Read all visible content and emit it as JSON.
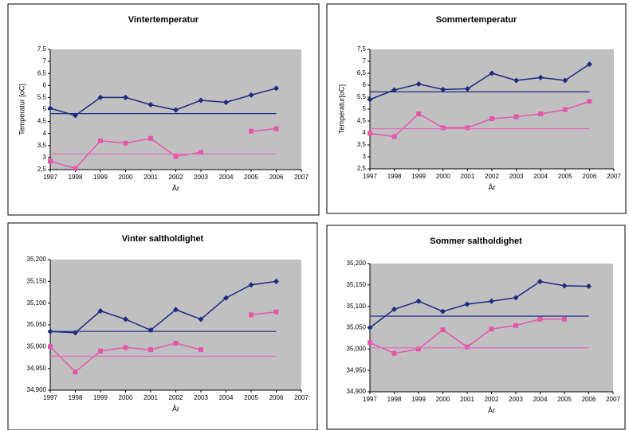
{
  "chart_data": [
    {
      "type": "line",
      "title": "Vintertemperatur",
      "x_label": "År",
      "y_label": "Temperatur [oC]",
      "x": [
        1997,
        1998,
        1999,
        2000,
        2001,
        2002,
        2003,
        2004,
        2005,
        2006
      ],
      "xlim": [
        1997,
        2007
      ],
      "xticks": [
        1997,
        1998,
        1999,
        2000,
        2001,
        2002,
        2003,
        2004,
        2005,
        2006,
        2007
      ],
      "ylim": [
        2.5,
        7.5
      ],
      "yticks": [
        {
          "value": 2.5,
          "label": "2,5"
        },
        3,
        {
          "value": 3.5,
          "label": "3,5"
        },
        4,
        {
          "value": 4.5,
          "label": "4,5"
        },
        5,
        {
          "value": 5.5,
          "label": "5,5"
        },
        6,
        {
          "value": 6.5,
          "label": "6,5"
        },
        7,
        {
          "value": 7.5,
          "label": "7,5"
        }
      ],
      "series": [
        {
          "color": "#1c2a80",
          "marker": "diamond",
          "values": [
            5.05,
            4.75,
            5.5,
            5.5,
            5.2,
            4.98,
            5.38,
            5.3,
            5.6,
            5.88
          ]
        },
        {
          "color": "#e456ab",
          "marker": "square",
          "values": [
            2.85,
            2.55,
            3.7,
            3.6,
            3.8,
            3.05,
            3.22,
            null,
            4.1,
            4.2
          ]
        },
        {
          "color": "#1f2d86",
          "marker": "none",
          "values": [
            4.83,
            4.83,
            4.83,
            4.83,
            4.83,
            4.83,
            4.83,
            4.83,
            4.83,
            4.83
          ]
        },
        {
          "color": "#e070c0",
          "marker": "none",
          "values": [
            3.15,
            3.15,
            3.15,
            3.15,
            3.15,
            3.15,
            3.15,
            3.15,
            3.15,
            3.15
          ]
        }
      ]
    },
    {
      "type": "line",
      "title": "Sommertemperatur",
      "x_label": "År",
      "y_label": "Temperatur[oC]",
      "x": [
        1997,
        1998,
        1999,
        2000,
        2001,
        2002,
        2003,
        2004,
        2005,
        2006
      ],
      "xlim": [
        1997,
        2007
      ],
      "xticks": [
        1997,
        1998,
        1999,
        2000,
        2001,
        2002,
        2003,
        2004,
        2005,
        2006,
        2007
      ],
      "ylim": [
        2.5,
        7.5
      ],
      "yticks": [
        {
          "value": 2.5,
          "label": "2,5"
        },
        3,
        {
          "value": 3.5,
          "label": "3,5"
        },
        4,
        {
          "value": 4.5,
          "label": "4,5"
        },
        5,
        {
          "value": 5.5,
          "label": "5,5"
        },
        6,
        {
          "value": 6.5,
          "label": "6,5"
        },
        7,
        {
          "value": 7.5,
          "label": "7,5"
        }
      ],
      "series": [
        {
          "color": "#1c2a80",
          "marker": "diamond",
          "values": [
            5.4,
            5.8,
            6.05,
            5.82,
            5.85,
            6.5,
            6.2,
            6.32,
            6.2,
            6.88
          ]
        },
        {
          "color": "#e456ab",
          "marker": "square",
          "values": [
            3.98,
            3.85,
            4.8,
            4.22,
            4.22,
            4.6,
            4.68,
            4.8,
            4.98,
            5.32
          ]
        },
        {
          "color": "#1f2d86",
          "marker": "none",
          "values": [
            5.72,
            5.72,
            5.72,
            5.72,
            5.72,
            5.72,
            5.72,
            5.72,
            5.72,
            5.72
          ]
        },
        {
          "color": "#e070c0",
          "marker": "none",
          "values": [
            4.18,
            4.18,
            4.18,
            4.18,
            4.18,
            4.18,
            4.18,
            4.18,
            4.18,
            4.18
          ]
        }
      ]
    },
    {
      "type": "line",
      "title": "Vinter saltholdighet",
      "x_label": "År",
      "x": [
        1997,
        1998,
        1999,
        2000,
        2001,
        2002,
        2003,
        2004,
        2005,
        2006
      ],
      "xlim": [
        1997,
        2007
      ],
      "xticks": [
        1997,
        1998,
        1999,
        2000,
        2001,
        2002,
        2003,
        2004,
        2005,
        2006,
        2007
      ],
      "ylim": [
        34.9,
        35.2
      ],
      "yticks": [
        {
          "value": 34.9,
          "label": "34,900"
        },
        {
          "value": 34.95,
          "label": "34,950"
        },
        {
          "value": 35.0,
          "label": "35,000"
        },
        {
          "value": 35.05,
          "label": "35,050"
        },
        {
          "value": 35.1,
          "label": "35,100"
        },
        {
          "value": 35.15,
          "label": "35,150"
        },
        {
          "value": 35.2,
          "label": "35,200"
        }
      ],
      "series": [
        {
          "color": "#1c2a80",
          "marker": "diamond",
          "values": [
            35.035,
            35.032,
            35.082,
            35.063,
            35.038,
            35.085,
            35.063,
            35.112,
            35.142,
            35.15
          ]
        },
        {
          "color": "#e456ab",
          "marker": "square",
          "values": [
            35.0,
            34.942,
            34.99,
            34.998,
            34.993,
            35.008,
            34.993,
            null,
            35.073,
            35.08
          ]
        },
        {
          "color": "#1f2d86",
          "marker": "none",
          "values": [
            35.035,
            35.035,
            35.035,
            35.035,
            35.035,
            35.035,
            35.035,
            35.035,
            35.035,
            35.035
          ]
        },
        {
          "color": "#e070c0",
          "marker": "none",
          "values": [
            34.978,
            34.978,
            34.978,
            34.978,
            34.978,
            34.978,
            34.978,
            34.978,
            34.978,
            34.978
          ]
        }
      ]
    },
    {
      "type": "line",
      "title": "Sommer saltholdighet",
      "x_label": "År",
      "x": [
        1997,
        1998,
        1999,
        2000,
        2001,
        2002,
        2003,
        2004,
        2005,
        2006
      ],
      "xlim": [
        1997,
        2007
      ],
      "xticks": [
        1997,
        1998,
        1999,
        2000,
        2001,
        2002,
        2003,
        2004,
        2005,
        2006,
        2007
      ],
      "ylim": [
        34.9,
        35.2
      ],
      "yticks": [
        {
          "value": 34.9,
          "label": "34,900"
        },
        {
          "value": 34.95,
          "label": "34,950"
        },
        {
          "value": 35.0,
          "label": "35,000"
        },
        {
          "value": 35.05,
          "label": "35,050"
        },
        {
          "value": 35.1,
          "label": "35,100"
        },
        {
          "value": 35.15,
          "label": "35,150"
        },
        {
          "value": 35.2,
          "label": "35,200"
        }
      ],
      "series": [
        {
          "color": "#1c2a80",
          "marker": "diamond",
          "values": [
            35.05,
            35.093,
            35.112,
            35.088,
            35.105,
            35.112,
            35.12,
            35.158,
            35.148,
            35.147
          ]
        },
        {
          "color": "#e456ab",
          "marker": "square",
          "values": [
            35.015,
            34.99,
            35.0,
            35.045,
            35.005,
            35.047,
            35.055,
            35.07,
            35.07,
            null
          ]
        },
        {
          "color": "#1f2d86",
          "marker": "none",
          "values": [
            35.077,
            35.077,
            35.077,
            35.077,
            35.077,
            35.077,
            35.077,
            35.077,
            35.077,
            35.077
          ]
        },
        {
          "color": "#e070c0",
          "marker": "none",
          "values": [
            35.003,
            35.003,
            35.003,
            35.003,
            35.003,
            35.003,
            35.003,
            35.003,
            35.003,
            35.003
          ]
        }
      ]
    }
  ]
}
